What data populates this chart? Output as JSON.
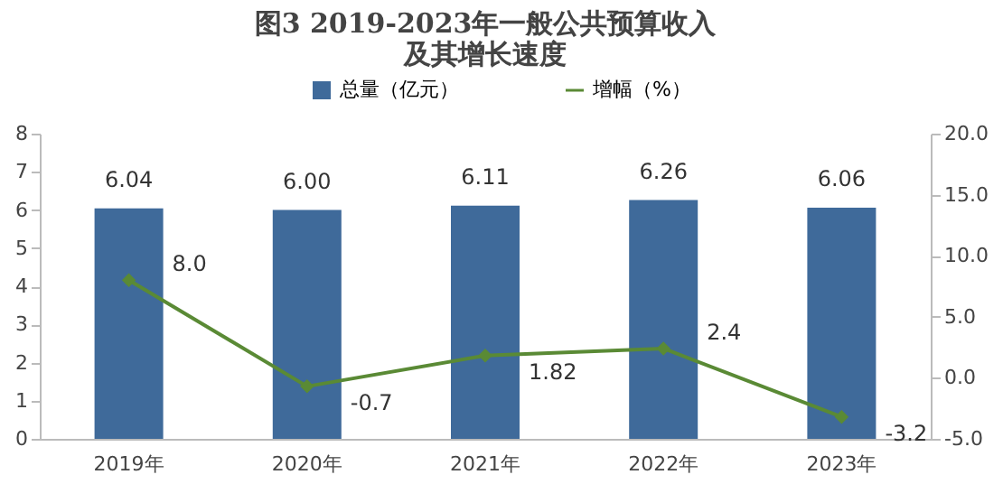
{
  "chart_data": {
    "type": "bar",
    "title": [
      "图3 2019-2023年一般公共预算收入",
      "及其增长速度"
    ],
    "categories": [
      "2019年",
      "2020年",
      "2021年",
      "2022年",
      "2023年"
    ],
    "series": [
      {
        "name": "总量（亿元）",
        "color": "#3f6a9a",
        "values": [
          6.04,
          6.0,
          6.11,
          6.26,
          6.06
        ],
        "value_labels": [
          "6.04",
          "6.00",
          "6.11",
          "6.26",
          "6.06"
        ]
      },
      {
        "name": "增幅（%）",
        "type": "line",
        "axis": "y2",
        "color": "#5a8a35",
        "marker": "diamond",
        "values": [
          8.0,
          -0.7,
          1.82,
          2.4,
          -3.2
        ],
        "value_labels": [
          "8.0",
          "-0.7",
          "1.82",
          "2.4",
          "-3.2"
        ]
      }
    ],
    "ylim": [
      0,
      8
    ],
    "yticks": [
      0,
      1,
      2,
      3,
      4,
      5,
      6,
      7,
      8
    ],
    "y2lim": [
      -5,
      20
    ],
    "y2ticks": [
      {
        "value": -5,
        "label": "-5.0"
      },
      {
        "value": 0,
        "label": "0.0"
      },
      {
        "value": 5,
        "label": "5.0"
      },
      {
        "value": 10,
        "label": "10.0"
      },
      {
        "value": 15,
        "label": "15.0"
      },
      {
        "value": 20,
        "label": "20.0"
      }
    ],
    "grid": false,
    "legend": "top"
  }
}
